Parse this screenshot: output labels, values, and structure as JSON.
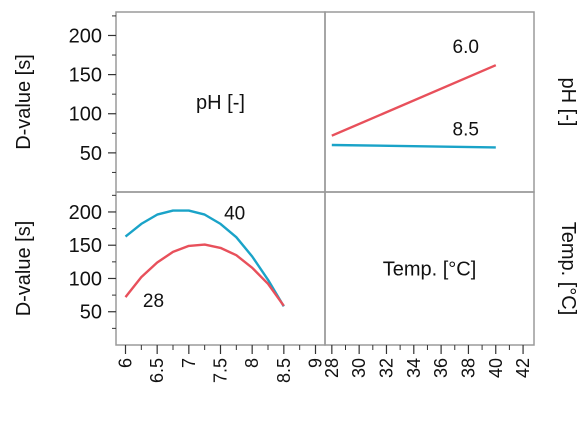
{
  "chart_data": {
    "type": "line",
    "title": "",
    "y_axis_labels": {
      "left": "D-value [s]",
      "right_top": "pH [-]",
      "right_bottom": "Temp. [°C]"
    },
    "diagonal_labels": {
      "top_left": "pH [-]",
      "bottom_right": "Temp. [°C]"
    },
    "y_ticks": [
      "200",
      "150",
      "100",
      "50"
    ],
    "ylim": [
      0,
      230
    ],
    "x_axes": {
      "pH": {
        "ticks": [
          "6",
          "6.5",
          "7",
          "7.5",
          "8",
          "8.5",
          "9"
        ],
        "xlim": [
          5.85,
          9.15
        ]
      },
      "temp": {
        "ticks": [
          "28",
          "30",
          "32",
          "34",
          "36",
          "38",
          "40",
          "42"
        ],
        "xlim": [
          27.5,
          42.8
        ]
      }
    },
    "grid": false,
    "panels": [
      {
        "panel": "top-right",
        "x_variable": "Temp. [°C]",
        "x_axis": "temp",
        "series": [
          {
            "name": "6.0",
            "color": "#e8505b",
            "x": [
              28,
              40
            ],
            "y": [
              72,
              162
            ]
          },
          {
            "name": "8.5",
            "color": "#1aa3c8",
            "x": [
              28,
              40
            ],
            "y": [
              60,
              57
            ]
          }
        ]
      },
      {
        "panel": "bottom-left",
        "x_variable": "pH [-]",
        "x_axis": "pH",
        "series": [
          {
            "name": "40",
            "color": "#1aa3c8",
            "x": [
              6,
              6.25,
              6.5,
              6.75,
              7,
              7.25,
              7.5,
              7.75,
              8,
              8.25,
              8.5
            ],
            "y": [
              163,
              182,
              196,
              202,
              202,
              196,
              182,
              162,
              133,
              98,
              58
            ]
          },
          {
            "name": "28",
            "color": "#e8505b",
            "x": [
              6,
              6.25,
              6.5,
              6.75,
              7,
              7.25,
              7.5,
              7.75,
              8,
              8.25,
              8.5
            ],
            "y": [
              72,
              102,
              124,
              140,
              149,
              151,
              146,
              135,
              116,
              92,
              59
            ]
          }
        ]
      }
    ]
  }
}
